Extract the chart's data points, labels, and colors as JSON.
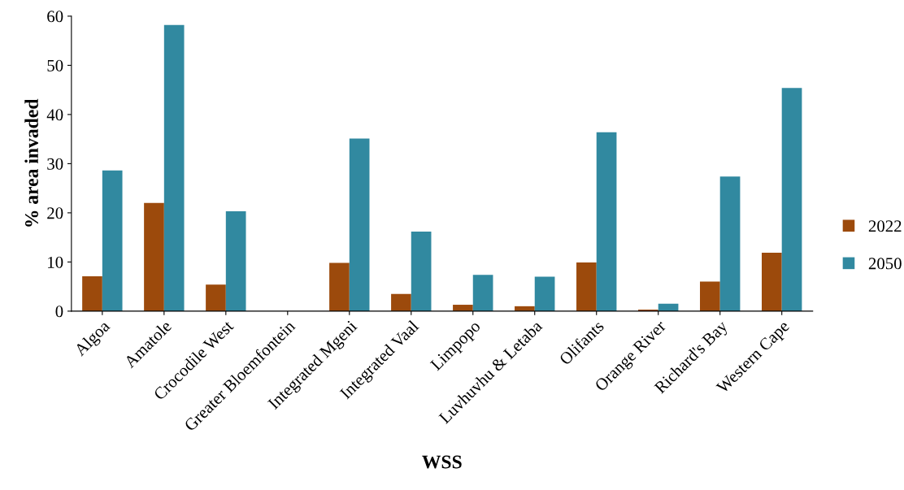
{
  "chart_data": {
    "type": "bar",
    "xlabel": "WSS",
    "ylabel": "% area invaded",
    "categories": [
      "Algoa",
      "Amatole",
      "Crocodile West",
      "Greater Bloemfontein",
      "Integrated Mgeni",
      "Integrated Vaal",
      "Limpopo",
      "Luvhuvhu & Letaba",
      "Olifants",
      "Orange River",
      "Richard's Bay",
      "Western Cape"
    ],
    "series": [
      {
        "name": "2022",
        "color": "#9c4a0c",
        "values": [
          7.1,
          22.0,
          5.4,
          0,
          9.8,
          3.5,
          1.3,
          1.0,
          9.9,
          0.3,
          6.0,
          11.9
        ]
      },
      {
        "name": "2050",
        "color": "#3189a0",
        "values": [
          28.6,
          58.2,
          20.3,
          0,
          35.1,
          16.2,
          7.4,
          7.0,
          36.4,
          1.5,
          27.4,
          45.4
        ]
      }
    ],
    "ylim": [
      0,
      60
    ],
    "yticks": [
      0,
      10,
      20,
      30,
      40,
      50,
      60
    ],
    "grid": false,
    "legend": "right"
  }
}
